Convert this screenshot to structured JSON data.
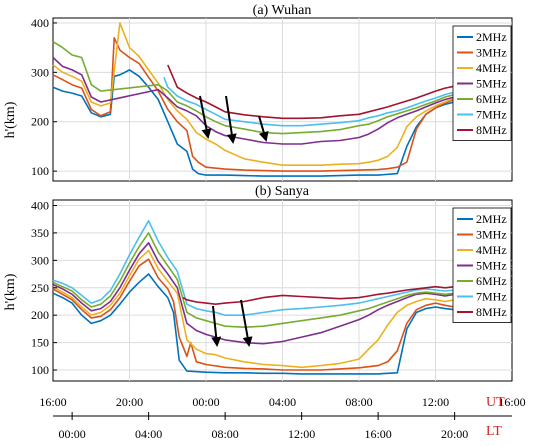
{
  "chart_data": [
    {
      "type": "line",
      "title": "(a) Wuhan",
      "ylabel": "h'(km)",
      "ylim": [
        80,
        410
      ],
      "yticks": [
        100,
        200,
        300,
        400
      ],
      "x_unit": "hours since 16:00 UT",
      "xlim": [
        0,
        24
      ],
      "grid": true,
      "legend": "top-right",
      "series": [
        {
          "name": "2MHz",
          "color": "#0072BD",
          "x": [
            0,
            0.5,
            1,
            1.5,
            2,
            2.5,
            3,
            3.2,
            3.5,
            4,
            4.5,
            5,
            5.5,
            6,
            6.5,
            7,
            7.3,
            7.6,
            8,
            9,
            10,
            11,
            12,
            13,
            14,
            15,
            16,
            17,
            18,
            18.5,
            19,
            19.5,
            20,
            20.5,
            21
          ],
          "y": [
            270,
            262,
            258,
            252,
            218,
            210,
            215,
            292,
            295,
            305,
            292,
            270,
            245,
            200,
            155,
            140,
            104,
            95,
            92,
            92,
            91,
            90,
            90,
            90,
            90,
            91,
            92,
            92,
            95,
            150,
            190,
            215,
            228,
            235,
            240
          ]
        },
        {
          "name": "3MHz",
          "color": "#D95319",
          "x": [
            0,
            0.5,
            1,
            1.5,
            2,
            2.5,
            3,
            3.2,
            3.5,
            4,
            4.5,
            5,
            5.5,
            6,
            6.5,
            7,
            7.3,
            7.6,
            8,
            9,
            10,
            11,
            12,
            13,
            14,
            15,
            16,
            17,
            17.5,
            18,
            18.5,
            19,
            19.5,
            20,
            20.5,
            21
          ],
          "y": [
            295,
            285,
            275,
            268,
            225,
            212,
            220,
            370,
            345,
            330,
            318,
            290,
            262,
            225,
            200,
            182,
            130,
            118,
            108,
            104,
            102,
            101,
            100,
            100,
            100,
            101,
            102,
            103,
            105,
            108,
            118,
            185,
            215,
            228,
            238,
            245
          ]
        },
        {
          "name": "4MHz",
          "color": "#EDB120",
          "x": [
            0,
            0.5,
            1,
            1.5,
            2,
            2.5,
            3,
            3.5,
            4,
            4.5,
            5,
            5.5,
            6,
            6.5,
            7,
            7.5,
            8,
            8.5,
            9,
            10,
            11,
            12,
            13,
            14,
            15,
            16,
            16.5,
            17,
            17.5,
            18,
            18.5,
            19,
            19.5,
            20,
            20.5,
            21
          ],
          "y": [
            315,
            300,
            292,
            282,
            240,
            232,
            238,
            400,
            350,
            332,
            305,
            278,
            245,
            222,
            205,
            178,
            165,
            155,
            142,
            125,
            118,
            112,
            112,
            112,
            114,
            115,
            118,
            122,
            130,
            148,
            190,
            210,
            222,
            232,
            240,
            248
          ]
        },
        {
          "name": "5MHz",
          "color": "#7E2F8E",
          "x": [
            0,
            0.5,
            1,
            1.5,
            2,
            2.5,
            5.5,
            6,
            6.5,
            7,
            7.5,
            8,
            8.5,
            9,
            10,
            11,
            12,
            13,
            14,
            15,
            16,
            16.5,
            17,
            17.5,
            18,
            18.5,
            19,
            19.5,
            20,
            20.5,
            21
          ],
          "y": [
            330,
            312,
            305,
            295,
            250,
            240,
            265,
            248,
            230,
            222,
            212,
            192,
            180,
            172,
            165,
            158,
            155,
            155,
            160,
            162,
            168,
            175,
            185,
            198,
            208,
            215,
            222,
            230,
            238,
            245,
            250
          ]
        },
        {
          "name": "6MHz",
          "color": "#77AC30",
          "x": [
            0,
            0.5,
            1,
            1.5,
            2,
            2.5,
            5.5,
            6,
            6.5,
            7,
            7.5,
            8,
            8.5,
            9,
            10,
            11,
            12,
            13,
            14,
            15,
            16,
            16.5,
            17,
            17.5,
            18,
            18.5,
            19,
            19.5,
            20,
            20.5,
            21
          ],
          "y": [
            362,
            350,
            335,
            330,
            275,
            262,
            275,
            262,
            240,
            232,
            222,
            210,
            200,
            192,
            185,
            178,
            176,
            178,
            180,
            184,
            192,
            195,
            202,
            210,
            216,
            222,
            228,
            235,
            242,
            250,
            255
          ]
        },
        {
          "name": "7MHz",
          "color": "#4DBEEE",
          "x": [
            5.8,
            6,
            6.5,
            7,
            7.5,
            8,
            8.5,
            9,
            10,
            11,
            12,
            13,
            14,
            15,
            16,
            16.5,
            17,
            17.5,
            18,
            18.5,
            19,
            19.5,
            20,
            20.5,
            21
          ],
          "y": [
            290,
            270,
            252,
            242,
            235,
            225,
            215,
            205,
            200,
            195,
            192,
            192,
            195,
            198,
            202,
            208,
            212,
            218,
            222,
            228,
            235,
            242,
            248,
            255,
            260
          ]
        },
        {
          "name": "8MHz",
          "color": "#A2142F",
          "x": [
            6,
            6.5,
            7,
            7.5,
            8,
            8.5,
            9,
            10,
            11,
            12,
            13,
            14,
            15,
            16,
            16.5,
            17,
            17.5,
            18,
            18.5,
            19,
            19.5,
            20,
            20.5,
            21
          ],
          "y": [
            315,
            270,
            258,
            248,
            240,
            230,
            220,
            214,
            210,
            207,
            207,
            208,
            212,
            215,
            220,
            225,
            230,
            236,
            242,
            248,
            255,
            262,
            268,
            272
          ]
        }
      ]
    },
    {
      "type": "line",
      "title": "(b) Sanya",
      "ylabel": "h'(km)",
      "ylim": [
        80,
        410
      ],
      "yticks": [
        100,
        150,
        200,
        250,
        300,
        350,
        400
      ],
      "x_unit": "hours since 16:00 UT",
      "xlim": [
        0,
        24
      ],
      "grid": true,
      "legend": "top-right",
      "series": [
        {
          "name": "2MHz",
          "color": "#0072BD",
          "x": [
            0,
            0.5,
            1,
            1.5,
            2,
            2.5,
            3,
            3.5,
            4,
            4.5,
            5,
            5.5,
            6,
            6.3,
            6.6,
            7,
            8,
            9,
            10,
            11,
            12,
            13,
            14,
            15,
            16,
            17,
            18,
            18.5,
            19,
            19.5,
            20,
            20.5,
            21,
            21.5,
            22,
            22.5,
            23,
            23.5,
            24
          ],
          "y": [
            240,
            232,
            222,
            200,
            185,
            190,
            200,
            220,
            242,
            260,
            275,
            252,
            232,
            205,
            118,
            98,
            96,
            95,
            95,
            94,
            94,
            93,
            93,
            93,
            93,
            93,
            95,
            175,
            205,
            212,
            215,
            212,
            210,
            212,
            218,
            228,
            238,
            246,
            255
          ]
        },
        {
          "name": "3MHz",
          "color": "#D95319",
          "x": [
            0,
            0.5,
            1,
            1.5,
            2,
            2.5,
            3,
            3.5,
            4,
            4.5,
            5,
            5.5,
            6,
            6.3,
            6.6,
            7,
            7.2,
            7.5,
            8,
            9,
            10,
            11,
            12,
            13,
            14,
            15,
            16,
            17,
            17.5,
            18,
            18.5,
            19,
            19.5,
            20,
            20.5,
            21,
            21.5,
            22,
            22.5,
            23,
            23.5,
            24
          ],
          "y": [
            248,
            238,
            228,
            210,
            195,
            198,
            210,
            232,
            262,
            290,
            302,
            268,
            248,
            225,
            160,
            125,
            150,
            115,
            110,
            105,
            103,
            102,
            100,
            100,
            100,
            102,
            104,
            108,
            115,
            135,
            185,
            210,
            218,
            222,
            218,
            215,
            218,
            225,
            235,
            245,
            255,
            262
          ]
        },
        {
          "name": "4MHz",
          "color": "#EDB120",
          "x": [
            0,
            0.5,
            1,
            1.5,
            2,
            2.5,
            3,
            3.5,
            4,
            4.5,
            5,
            5.5,
            6,
            6.5,
            7,
            7.5,
            8,
            8.5,
            9,
            10,
            11,
            12,
            13,
            14,
            15,
            16,
            16.5,
            17,
            17.5,
            18,
            18.5,
            19,
            19.5,
            20,
            20.5,
            21,
            21.5,
            22,
            22.5,
            23,
            23.5,
            24
          ],
          "y": [
            252,
            242,
            232,
            215,
            200,
            205,
            218,
            240,
            272,
            302,
            318,
            285,
            262,
            240,
            155,
            138,
            130,
            128,
            122,
            115,
            110,
            108,
            105,
            108,
            112,
            120,
            138,
            155,
            182,
            205,
            218,
            225,
            230,
            228,
            225,
            228,
            232,
            240,
            248,
            256,
            265,
            272
          ]
        },
        {
          "name": "5MHz",
          "color": "#7E2F8E",
          "x": [
            0,
            0.5,
            1,
            1.5,
            2,
            2.5,
            3,
            3.5,
            4,
            4.5,
            5,
            5.5,
            6,
            6.5,
            7,
            7.5,
            8,
            8.5,
            9,
            10,
            11,
            12,
            13,
            14,
            15,
            16,
            16.5,
            17,
            17.5,
            18,
            18.5,
            19,
            19.5,
            20,
            20.5,
            21,
            21.5,
            22,
            22.5,
            23,
            23.5,
            24
          ],
          "y": [
            256,
            248,
            238,
            222,
            208,
            212,
            225,
            250,
            282,
            312,
            332,
            298,
            275,
            250,
            185,
            172,
            165,
            160,
            155,
            150,
            148,
            152,
            160,
            168,
            180,
            192,
            200,
            210,
            218,
            225,
            232,
            238,
            240,
            238,
            235,
            238,
            242,
            250,
            258,
            266,
            275,
            282
          ]
        },
        {
          "name": "6MHz",
          "color": "#77AC30",
          "x": [
            0,
            0.5,
            1,
            1.5,
            2,
            2.5,
            3,
            3.5,
            4,
            4.5,
            5,
            5.5,
            6,
            6.5,
            7,
            7.5,
            8,
            8.5,
            9,
            10,
            11,
            12,
            13,
            14,
            15,
            16,
            16.5,
            17,
            17.5,
            18,
            18.5,
            19,
            19.5,
            20,
            20.5,
            21,
            21.5,
            22,
            22.5,
            23,
            23.5,
            24
          ],
          "y": [
            260,
            252,
            244,
            228,
            215,
            220,
            235,
            262,
            295,
            325,
            350,
            315,
            290,
            265,
            205,
            195,
            190,
            185,
            180,
            178,
            180,
            185,
            190,
            195,
            200,
            208,
            212,
            218,
            224,
            230,
            236,
            240,
            242,
            240,
            238,
            240,
            245,
            252,
            260,
            268,
            277,
            285
          ]
        },
        {
          "name": "7MHz",
          "color": "#4DBEEE",
          "x": [
            0,
            0.5,
            1,
            1.5,
            2,
            2.5,
            3,
            3.5,
            4,
            4.5,
            5,
            5.5,
            6,
            6.5,
            7,
            7.5,
            8,
            8.5,
            9,
            10,
            11,
            12,
            13,
            14,
            15,
            16,
            16.5,
            17,
            17.5,
            18,
            18.5,
            19,
            19.5,
            20,
            20.5,
            21,
            21.5,
            22,
            22.5,
            23,
            23.5,
            24
          ],
          "y": [
            264,
            258,
            250,
            236,
            222,
            228,
            245,
            275,
            310,
            342,
            372,
            335,
            305,
            280,
            220,
            212,
            208,
            205,
            200,
            200,
            205,
            210,
            212,
            215,
            218,
            222,
            226,
            230,
            234,
            238,
            242,
            246,
            248,
            246,
            244,
            246,
            252,
            258,
            266,
            274,
            283,
            290
          ]
        },
        {
          "name": "8MHz",
          "color": "#A2142F",
          "x": [
            6.8,
            7,
            7.5,
            8,
            8.5,
            9,
            10,
            11,
            12,
            13,
            14,
            15,
            16,
            16.5,
            17,
            17.5,
            18,
            18.5,
            19,
            19.5,
            20,
            20.5,
            21,
            21.5,
            22,
            22.5,
            23,
            23.5,
            24
          ],
          "y": [
            232,
            228,
            224,
            222,
            220,
            222,
            225,
            232,
            236,
            234,
            232,
            230,
            232,
            235,
            238,
            240,
            243,
            246,
            248,
            250,
            252,
            250,
            252,
            256,
            262,
            270,
            278,
            287,
            294
          ]
        }
      ]
    }
  ],
  "axes": {
    "ut_label": "UT",
    "lt_label": "LT",
    "ut_ticks": [
      "16:00",
      "20:00",
      "00:00",
      "04:00",
      "08:00",
      "12:00",
      "16:00"
    ],
    "lt_ticks": [
      "00:00",
      "04:00",
      "08:00",
      "12:00",
      "16:00",
      "20:00"
    ]
  },
  "colors": {
    "label_accent": "#d92020"
  }
}
